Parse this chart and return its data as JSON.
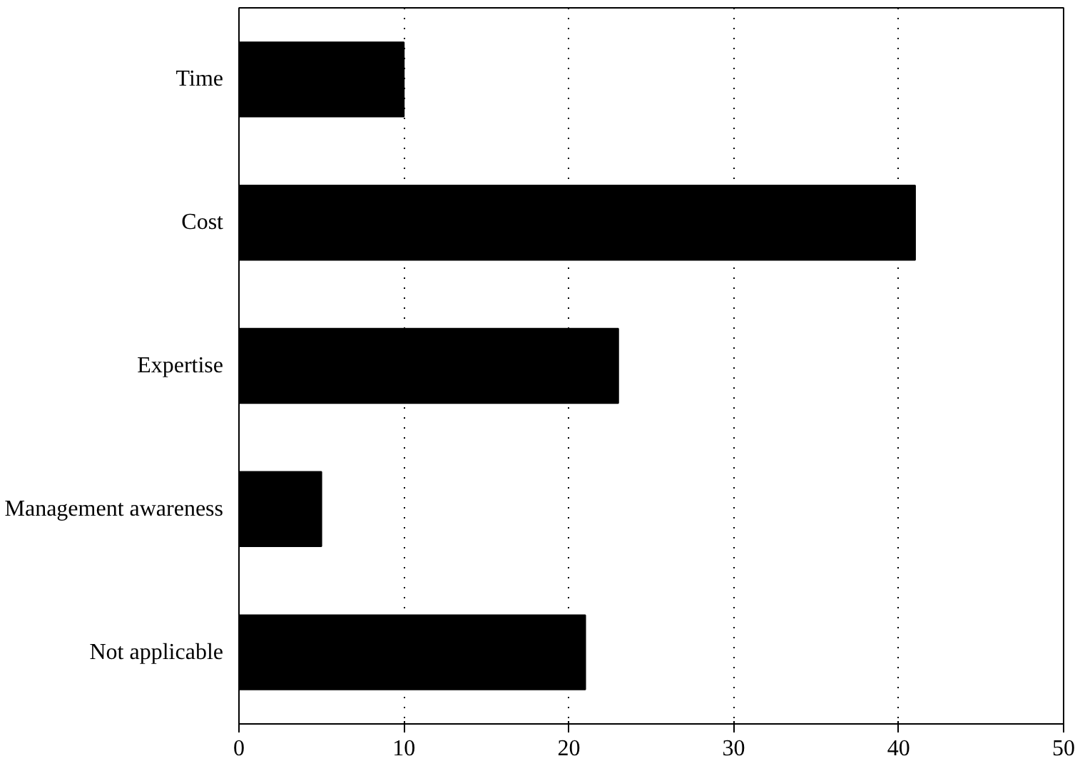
{
  "chart_data": {
    "type": "bar",
    "orientation": "horizontal",
    "categories": [
      "Time",
      "Cost",
      "Expertise",
      "Management awareness",
      "Not applicable"
    ],
    "values": [
      10,
      41,
      23,
      5,
      21
    ],
    "color": "#000000",
    "xlim": [
      0,
      50
    ],
    "xticks": [
      0,
      10,
      20,
      30,
      40,
      50
    ],
    "grid": "x",
    "line_style": "dotted"
  }
}
